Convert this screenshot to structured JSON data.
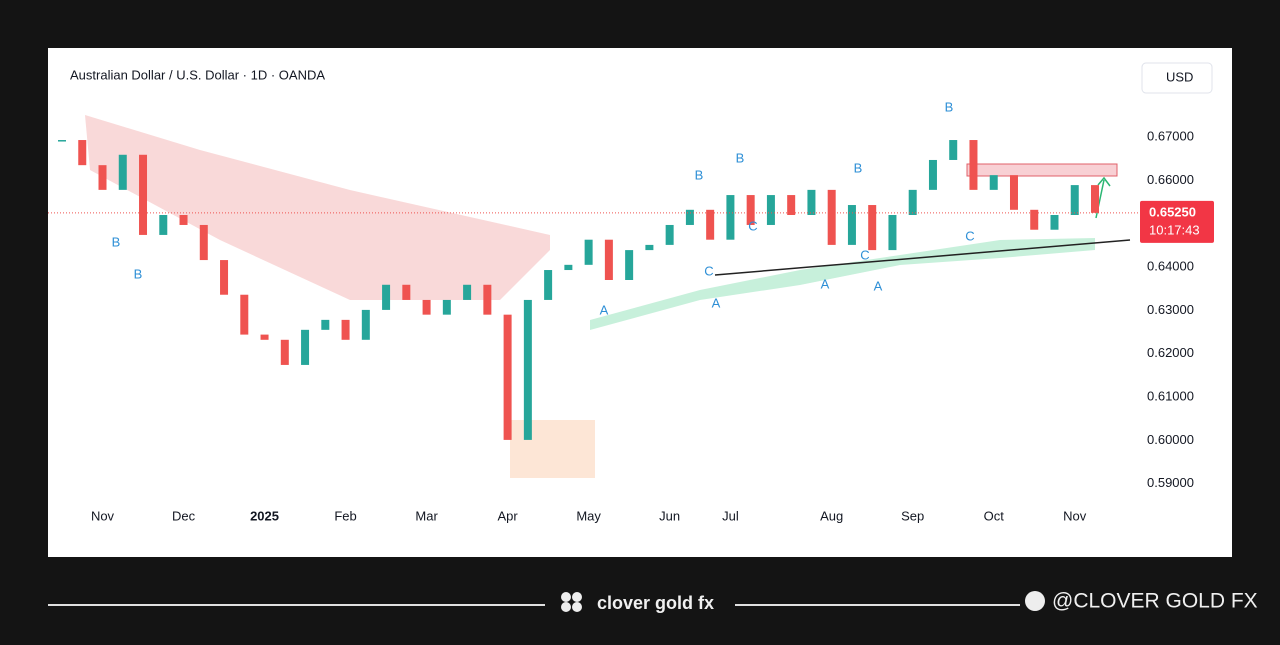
{
  "chart_data": {
    "type": "candle-line",
    "title": "Australian Dollar / U.S. Dollar · 1D · OANDA",
    "currency_button": "USD",
    "categories": [
      null,
      null,
      "Nov",
      null,
      null,
      null,
      "Dec",
      null,
      null,
      null,
      "2025",
      null,
      null,
      null,
      "Feb",
      null,
      null,
      null,
      "Mar",
      null,
      null,
      null,
      "Apr",
      null,
      null,
      null,
      "May",
      null,
      null,
      null,
      "Jun",
      null,
      null,
      "Jul",
      null,
      null,
      null,
      null,
      "Aug",
      null,
      null,
      null,
      "Sep",
      null,
      null,
      null,
      "Oct",
      null,
      null,
      null,
      "Nov",
      null
    ],
    "series": [
      {
        "name": "AUD/USD",
        "values": [
          0.6693,
          0.6635,
          0.6578,
          0.6659,
          0.6474,
          0.652,
          0.6497,
          0.6416,
          0.6336,
          0.6244,
          0.6232,
          0.6174,
          0.6255,
          0.6278,
          0.6232,
          0.6301,
          0.6359,
          0.6324,
          0.629,
          0.6324,
          0.6359,
          0.629,
          0.6001,
          0.6324,
          0.6393,
          0.6405,
          0.6463,
          0.637,
          0.6439,
          0.6451,
          0.6497,
          0.6532,
          0.6463,
          0.6566,
          0.6497,
          0.6566,
          0.652,
          0.6578,
          0.6451,
          0.6543,
          0.6439,
          0.652,
          0.6578,
          0.6647,
          0.6693,
          0.6578,
          0.6612,
          0.6532,
          0.6486,
          0.652,
          0.6589,
          0.6525
        ]
      }
    ],
    "up_color": "#26a69a",
    "down_color": "#ef5350",
    "ylim": [
      0.586,
      0.688
    ],
    "yticks": [
      {
        "value": 0.59,
        "label": "0.59000"
      },
      {
        "value": 0.6,
        "label": "0.60000"
      },
      {
        "value": 0.61,
        "label": "0.61000"
      },
      {
        "value": 0.62,
        "label": "0.62000"
      },
      {
        "value": 0.63,
        "label": "0.63000"
      },
      {
        "value": 0.64,
        "label": "0.64000"
      },
      {
        "value": 0.66,
        "label": "0.66000"
      },
      {
        "value": 0.67,
        "label": "0.67000"
      }
    ],
    "grid": false,
    "last_price": {
      "value": 0.6525,
      "label": "0.65250"
    },
    "countdown": "10:17:43",
    "wave_labels": [
      "B",
      "B",
      "B",
      "B",
      "B",
      "B",
      "A",
      "A",
      "A",
      "A",
      "C",
      "C",
      "C",
      "C"
    ]
  },
  "footer": {
    "brand": "clover gold fx",
    "handle": "@CLOVER GOLD FX"
  }
}
